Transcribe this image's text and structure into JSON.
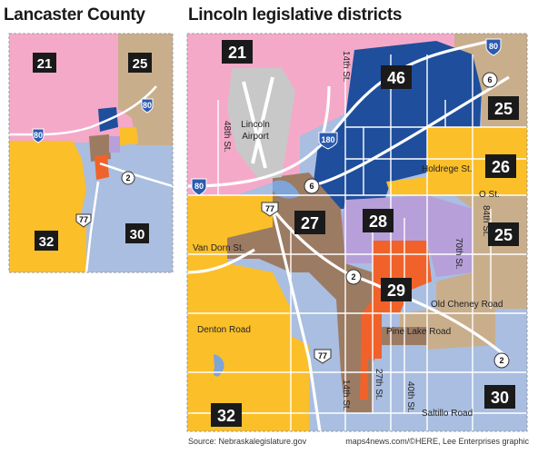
{
  "left_map": {
    "title": "Lancaster County",
    "districts": [
      {
        "number": "21",
        "color": "#f5a9c8"
      },
      {
        "number": "25",
        "color": "#c9ae8c"
      },
      {
        "number": "32",
        "color": "#fbbf2a"
      },
      {
        "number": "30",
        "color": "#a9bee0"
      }
    ],
    "interstate": "80",
    "route_2": "2",
    "route_77": "77"
  },
  "right_map": {
    "title": "Lincoln legislative districts",
    "districts": [
      {
        "number": "21",
        "color": "#f5a9c8"
      },
      {
        "number": "46",
        "color": "#1f4e9c"
      },
      {
        "number": "25",
        "color": "#c9ae8c"
      },
      {
        "number": "26",
        "color": "#fbbf2a"
      },
      {
        "number": "25",
        "color": "#c9ae8c"
      },
      {
        "number": "27",
        "color": "#9c7b63"
      },
      {
        "number": "28",
        "color": "#b79fd9"
      },
      {
        "number": "29",
        "color": "#f0622a"
      },
      {
        "number": "32",
        "color": "#fbbf2a"
      },
      {
        "number": "30",
        "color": "#a9bee0"
      }
    ],
    "streets": {
      "s14th": "14th St.",
      "s48th": "48th St.",
      "s14th_south": "14th St.",
      "s27th": "27th St.",
      "s40th": "40th St.",
      "s70th": "70th St.",
      "s84th": "84th St.",
      "holdrege": "Holdrege St.",
      "o_st": "O St.",
      "van_dorn": "Van Dorn St.",
      "old_cheney": "Old Cheney Road",
      "pine_lake": "Pine Lake Road",
      "denton": "Denton Road",
      "saltillo": "Saltillo Road"
    },
    "airport": [
      "Lincoln",
      "Airport"
    ],
    "shields": {
      "i80_top": "80",
      "i80_west": "80",
      "i180": "180",
      "r6_ne": "6",
      "r6_mid": "6",
      "r77_north": "77",
      "r77_south": "77",
      "r2_mid": "2",
      "r2_se": "2"
    }
  },
  "footer": {
    "source": "Source: Nebraskalegislature.gov",
    "credit": "maps4news.com/©HERE, Lee Enterprises graphic"
  }
}
